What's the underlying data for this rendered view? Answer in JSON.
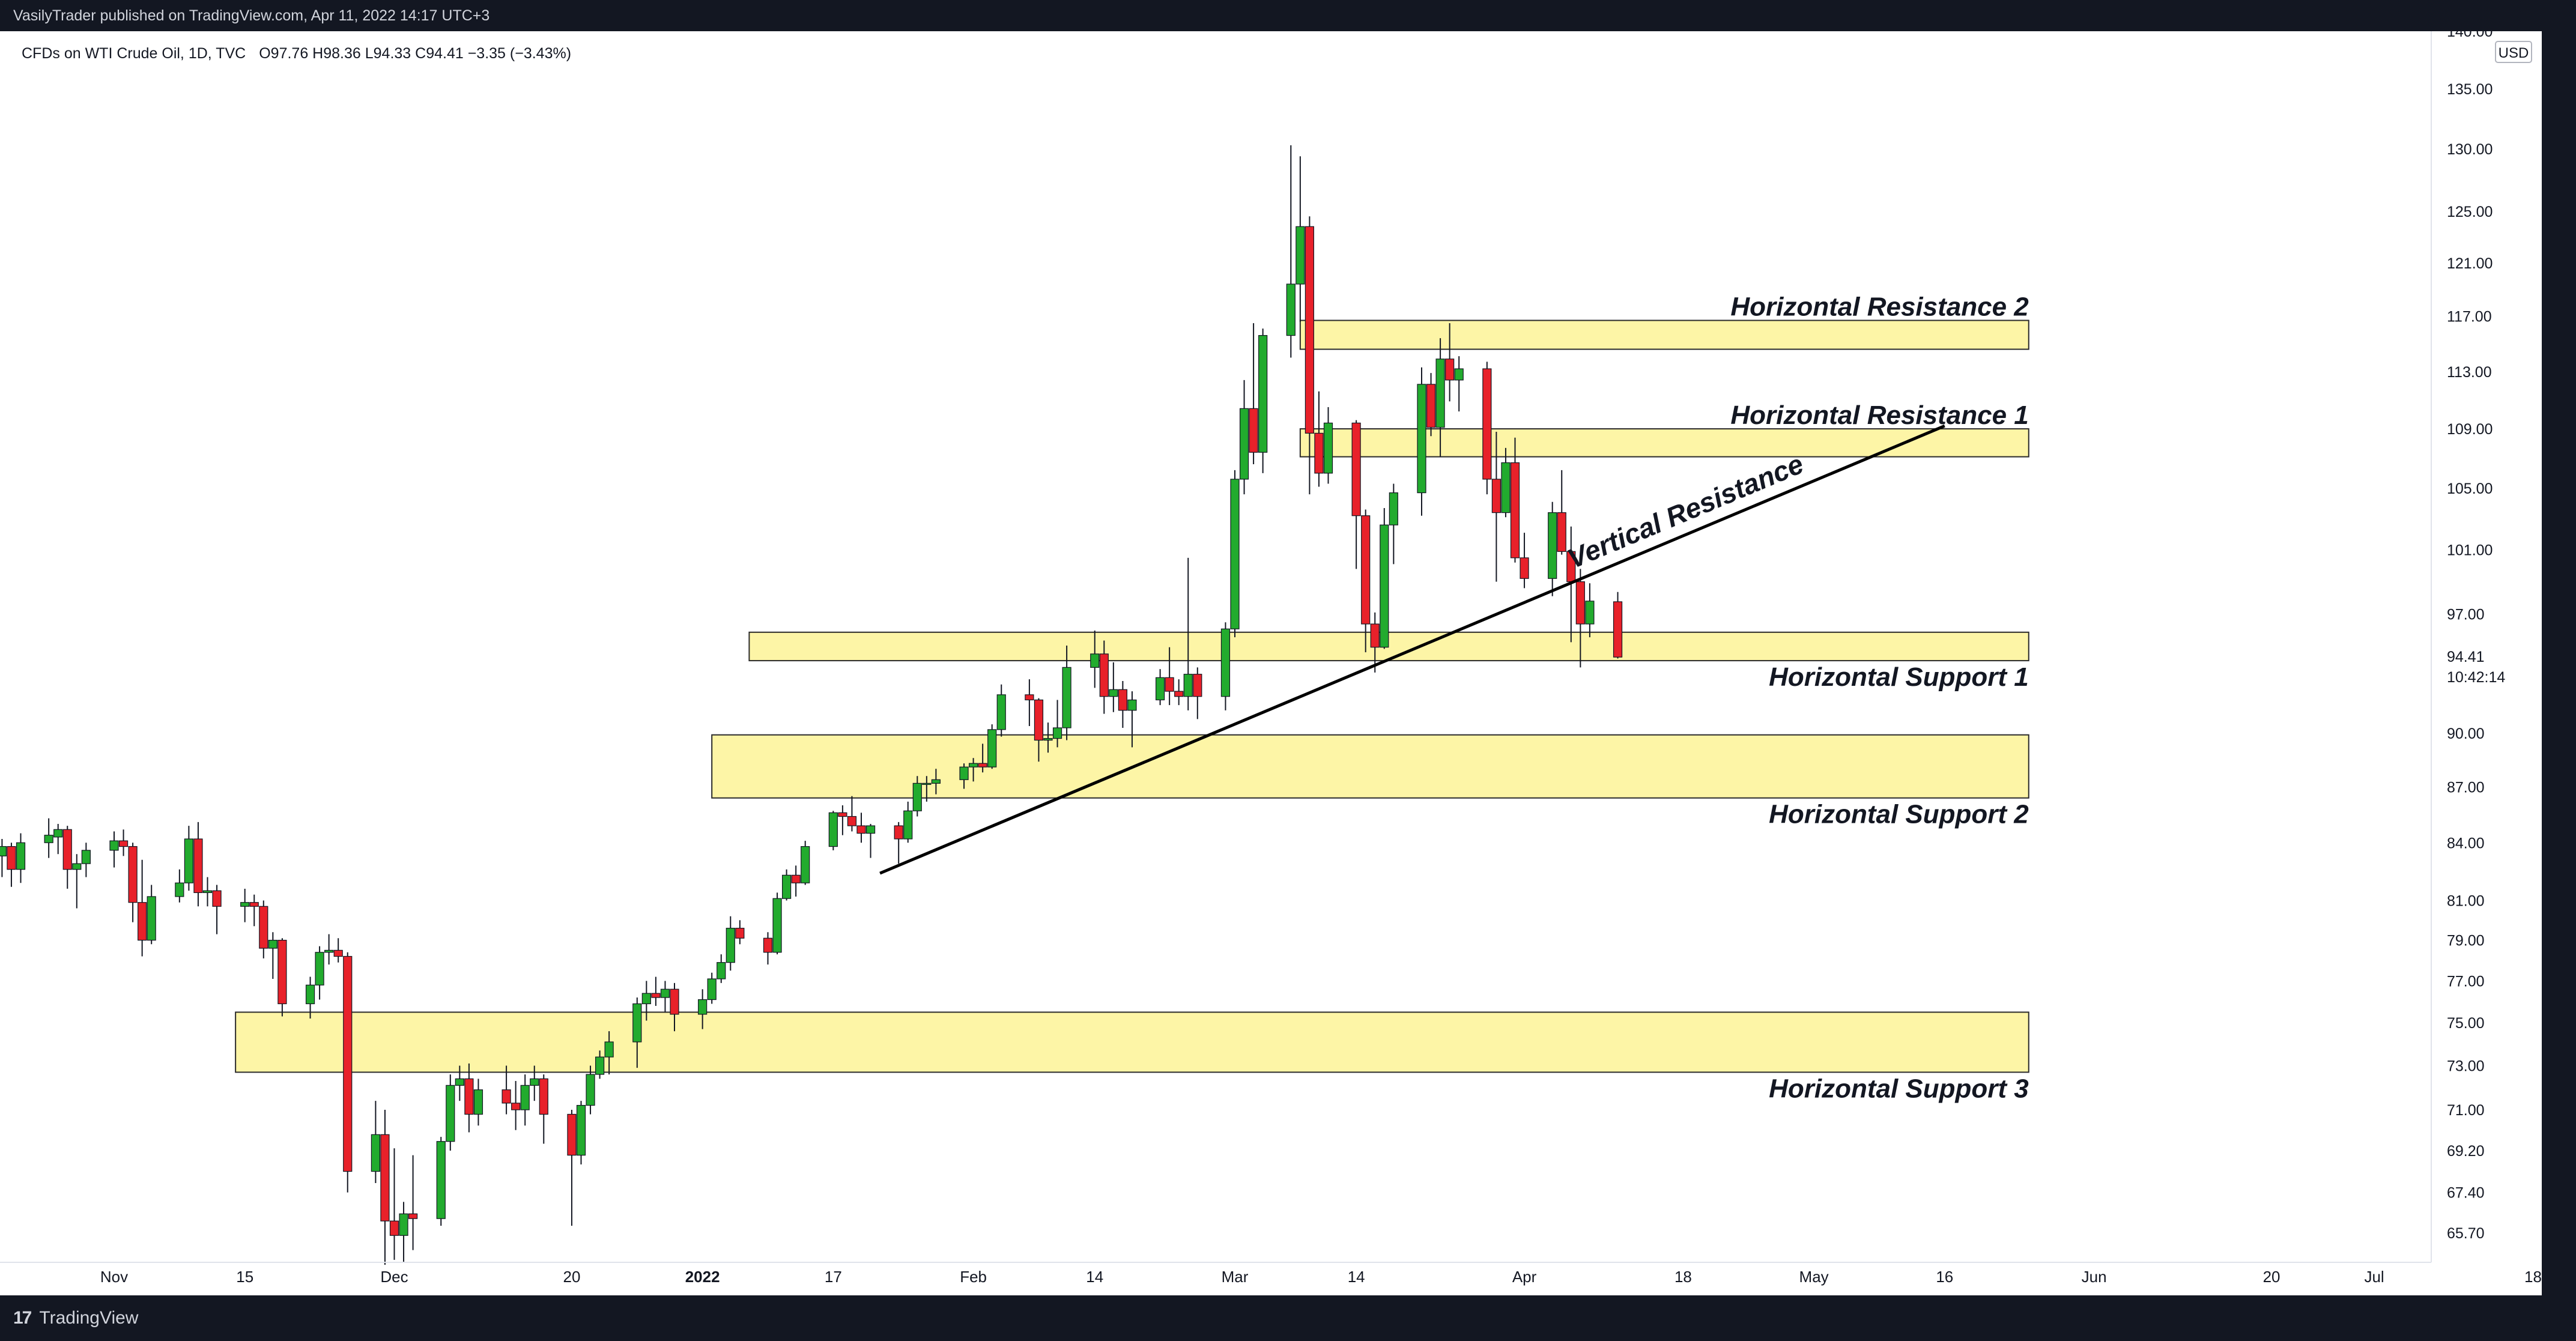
{
  "header": {
    "published": "VasilyTrader published on TradingView.com, Apr 11, 2022 14:17 UTC+3"
  },
  "legend": {
    "symbol": "CFDs on WTI Crude Oil, 1D, TVC",
    "ohlc": "O97.76  H98.36  L94.33  C94.41  −3.35 (−3.43%)"
  },
  "footer": {
    "brand": "TradingView",
    "logo": "17"
  },
  "colors": {
    "up": "#22ab2e",
    "down": "#e8212a",
    "zone_fill": "#fdf5a6",
    "zone_stroke": "#2a2a2a",
    "background": "#ffffff",
    "axis_text": "#131722"
  },
  "chart_data": {
    "type": "candlestick",
    "title": "CFDs on WTI Crude Oil, 1D, TVC",
    "currency": "USD",
    "y_scale": "log",
    "ylim": [
      64.5,
      140.0
    ],
    "last_price": "94.41",
    "countdown": "10:42:14",
    "y_ticks": [
      "140.00",
      "135.00",
      "130.00",
      "125.00",
      "121.00",
      "117.00",
      "113.00",
      "109.00",
      "105.00",
      "101.00",
      "97.00",
      "94.41",
      "90.00",
      "87.00",
      "84.00",
      "81.00",
      "79.00",
      "77.00",
      "75.00",
      "73.00",
      "71.00",
      "69.20",
      "67.40",
      "65.70"
    ],
    "x_ticks": [
      {
        "label": "Nov",
        "date": "2021-11-01",
        "bold": false
      },
      {
        "label": "15",
        "date": "2021-11-15",
        "bold": false
      },
      {
        "label": "Dec",
        "date": "2021-12-01",
        "bold": false
      },
      {
        "label": "20",
        "date": "2021-12-20",
        "bold": false
      },
      {
        "label": "2022",
        "date": "2022-01-03",
        "bold": true
      },
      {
        "label": "17",
        "date": "2022-01-17",
        "bold": false
      },
      {
        "label": "Feb",
        "date": "2022-02-01",
        "bold": false
      },
      {
        "label": "14",
        "date": "2022-02-14",
        "bold": false
      },
      {
        "label": "Mar",
        "date": "2022-03-01",
        "bold": false
      },
      {
        "label": "14",
        "date": "2022-03-14",
        "bold": false
      },
      {
        "label": "Apr",
        "date": "2022-04-01",
        "bold": false
      },
      {
        "label": "18",
        "date": "2022-04-18",
        "bold": false
      },
      {
        "label": "May",
        "date": "2022-05-02",
        "bold": false
      },
      {
        "label": "16",
        "date": "2022-05-16",
        "bold": false
      },
      {
        "label": "Jun",
        "date": "2022-06-01",
        "bold": false
      },
      {
        "label": "20",
        "date": "2022-06-20",
        "bold": false
      },
      {
        "label": "Jul",
        "date": "2022-07-01",
        "bold": false
      },
      {
        "label": "18",
        "date": "2022-07-18",
        "bold": false
      }
    ],
    "candles": [
      {
        "d": "2021-10-19",
        "o": 82.4,
        "h": 83.6,
        "l": 81.0,
        "c": 83.4
      },
      {
        "d": "2021-10-20",
        "o": 83.3,
        "h": 84.2,
        "l": 82.2,
        "c": 83.8
      },
      {
        "d": "2021-10-21",
        "o": 83.8,
        "h": 84.0,
        "l": 81.7,
        "c": 82.6
      },
      {
        "d": "2021-10-22",
        "o": 82.6,
        "h": 84.5,
        "l": 81.9,
        "c": 84.0
      },
      {
        "d": "2021-10-25",
        "o": 84.0,
        "h": 85.3,
        "l": 83.2,
        "c": 84.4
      },
      {
        "d": "2021-10-26",
        "o": 84.3,
        "h": 85.0,
        "l": 83.4,
        "c": 84.7
      },
      {
        "d": "2021-10-27",
        "o": 84.7,
        "h": 84.9,
        "l": 81.6,
        "c": 82.6
      },
      {
        "d": "2021-10-28",
        "o": 82.6,
        "h": 83.4,
        "l": 80.6,
        "c": 82.9
      },
      {
        "d": "2021-10-29",
        "o": 82.9,
        "h": 84.0,
        "l": 82.2,
        "c": 83.6
      },
      {
        "d": "2021-11-01",
        "o": 83.6,
        "h": 84.6,
        "l": 82.7,
        "c": 84.1
      },
      {
        "d": "2021-11-02",
        "o": 84.1,
        "h": 84.7,
        "l": 83.3,
        "c": 83.8
      },
      {
        "d": "2021-11-03",
        "o": 83.8,
        "h": 84.0,
        "l": 79.9,
        "c": 80.9
      },
      {
        "d": "2021-11-04",
        "o": 80.9,
        "h": 83.1,
        "l": 78.2,
        "c": 79.0
      },
      {
        "d": "2021-11-05",
        "o": 79.0,
        "h": 81.8,
        "l": 78.8,
        "c": 81.2
      },
      {
        "d": "2021-11-08",
        "o": 81.2,
        "h": 82.6,
        "l": 80.9,
        "c": 81.9
      },
      {
        "d": "2021-11-09",
        "o": 81.9,
        "h": 84.9,
        "l": 81.5,
        "c": 84.2
      },
      {
        "d": "2021-11-10",
        "o": 84.2,
        "h": 85.1,
        "l": 80.7,
        "c": 81.4
      },
      {
        "d": "2021-11-11",
        "o": 81.4,
        "h": 82.2,
        "l": 80.7,
        "c": 81.5
      },
      {
        "d": "2021-11-12",
        "o": 81.5,
        "h": 81.8,
        "l": 79.3,
        "c": 80.7
      },
      {
        "d": "2021-11-15",
        "o": 80.7,
        "h": 81.6,
        "l": 79.9,
        "c": 80.9
      },
      {
        "d": "2021-11-16",
        "o": 80.9,
        "h": 81.3,
        "l": 79.7,
        "c": 80.7
      },
      {
        "d": "2021-11-17",
        "o": 80.7,
        "h": 81.0,
        "l": 78.1,
        "c": 78.6
      },
      {
        "d": "2021-11-18",
        "o": 78.6,
        "h": 79.4,
        "l": 77.1,
        "c": 79.0
      },
      {
        "d": "2021-11-19",
        "o": 79.0,
        "h": 79.1,
        "l": 75.3,
        "c": 75.9
      },
      {
        "d": "2021-11-22",
        "o": 75.9,
        "h": 77.2,
        "l": 75.2,
        "c": 76.8
      },
      {
        "d": "2021-11-23",
        "o": 76.8,
        "h": 78.7,
        "l": 76.1,
        "c": 78.4
      },
      {
        "d": "2021-11-24",
        "o": 78.4,
        "h": 79.3,
        "l": 77.8,
        "c": 78.5
      },
      {
        "d": "2021-11-25",
        "o": 78.5,
        "h": 79.1,
        "l": 77.9,
        "c": 78.2
      },
      {
        "d": "2021-11-26",
        "o": 78.2,
        "h": 78.4,
        "l": 67.4,
        "c": 68.3
      },
      {
        "d": "2021-11-29",
        "o": 68.3,
        "h": 71.4,
        "l": 67.8,
        "c": 69.9
      },
      {
        "d": "2021-11-30",
        "o": 69.9,
        "h": 71.0,
        "l": 64.4,
        "c": 66.2
      },
      {
        "d": "2021-12-01",
        "o": 66.2,
        "h": 69.3,
        "l": 64.6,
        "c": 65.6
      },
      {
        "d": "2021-12-02",
        "o": 65.6,
        "h": 67.0,
        "l": 64.5,
        "c": 66.5
      },
      {
        "d": "2021-12-03",
        "o": 66.5,
        "h": 69.0,
        "l": 65.0,
        "c": 66.3
      },
      {
        "d": "2021-12-06",
        "o": 66.3,
        "h": 69.8,
        "l": 66.0,
        "c": 69.6
      },
      {
        "d": "2021-12-07",
        "o": 69.6,
        "h": 72.6,
        "l": 69.2,
        "c": 72.1
      },
      {
        "d": "2021-12-08",
        "o": 72.1,
        "h": 73.0,
        "l": 71.4,
        "c": 72.4
      },
      {
        "d": "2021-12-09",
        "o": 72.4,
        "h": 73.1,
        "l": 70.0,
        "c": 70.8
      },
      {
        "d": "2021-12-10",
        "o": 70.8,
        "h": 72.4,
        "l": 70.3,
        "c": 71.9
      },
      {
        "d": "2021-12-13",
        "o": 71.9,
        "h": 73.0,
        "l": 70.8,
        "c": 71.3
      },
      {
        "d": "2021-12-14",
        "o": 71.3,
        "h": 72.3,
        "l": 70.1,
        "c": 71.0
      },
      {
        "d": "2021-12-15",
        "o": 71.0,
        "h": 72.6,
        "l": 70.3,
        "c": 72.1
      },
      {
        "d": "2021-12-16",
        "o": 72.1,
        "h": 73.0,
        "l": 71.4,
        "c": 72.4
      },
      {
        "d": "2021-12-17",
        "o": 72.4,
        "h": 72.6,
        "l": 69.5,
        "c": 70.8
      },
      {
        "d": "2021-12-20",
        "o": 70.8,
        "h": 71.0,
        "l": 66.0,
        "c": 69.0
      },
      {
        "d": "2021-12-21",
        "o": 69.0,
        "h": 71.4,
        "l": 68.6,
        "c": 71.2
      },
      {
        "d": "2021-12-22",
        "o": 71.2,
        "h": 73.0,
        "l": 70.8,
        "c": 72.6
      },
      {
        "d": "2021-12-23",
        "o": 72.6,
        "h": 73.7,
        "l": 72.4,
        "c": 73.4
      },
      {
        "d": "2021-12-24",
        "o": 73.4,
        "h": 74.6,
        "l": 72.6,
        "c": 74.1
      },
      {
        "d": "2021-12-27",
        "o": 74.1,
        "h": 76.2,
        "l": 72.9,
        "c": 75.9
      },
      {
        "d": "2021-12-28",
        "o": 75.9,
        "h": 77.0,
        "l": 75.1,
        "c": 76.4
      },
      {
        "d": "2021-12-29",
        "o": 76.4,
        "h": 77.2,
        "l": 75.8,
        "c": 76.2
      },
      {
        "d": "2021-12-30",
        "o": 76.2,
        "h": 77.0,
        "l": 75.5,
        "c": 76.6
      },
      {
        "d": "2021-12-31",
        "o": 76.6,
        "h": 76.9,
        "l": 74.6,
        "c": 75.4
      },
      {
        "d": "2022-01-03",
        "o": 75.4,
        "h": 76.6,
        "l": 74.7,
        "c": 76.1
      },
      {
        "d": "2022-01-04",
        "o": 76.1,
        "h": 77.4,
        "l": 75.9,
        "c": 77.1
      },
      {
        "d": "2022-01-05",
        "o": 77.1,
        "h": 78.3,
        "l": 76.9,
        "c": 77.9
      },
      {
        "d": "2022-01-06",
        "o": 77.9,
        "h": 80.2,
        "l": 77.5,
        "c": 79.6
      },
      {
        "d": "2022-01-07",
        "o": 79.6,
        "h": 80.0,
        "l": 78.8,
        "c": 79.1
      },
      {
        "d": "2022-01-10",
        "o": 79.1,
        "h": 79.4,
        "l": 77.8,
        "c": 78.4
      },
      {
        "d": "2022-01-11",
        "o": 78.4,
        "h": 81.4,
        "l": 78.3,
        "c": 81.1
      },
      {
        "d": "2022-01-12",
        "o": 81.1,
        "h": 82.6,
        "l": 81.0,
        "c": 82.3
      },
      {
        "d": "2022-01-13",
        "o": 82.3,
        "h": 82.8,
        "l": 81.2,
        "c": 81.9
      },
      {
        "d": "2022-01-14",
        "o": 81.9,
        "h": 84.1,
        "l": 81.8,
        "c": 83.8
      },
      {
        "d": "2022-01-17",
        "o": 83.8,
        "h": 85.7,
        "l": 83.6,
        "c": 85.6
      },
      {
        "d": "2022-01-18",
        "o": 85.6,
        "h": 86.0,
        "l": 84.4,
        "c": 85.4
      },
      {
        "d": "2022-01-19",
        "o": 85.4,
        "h": 86.5,
        "l": 84.6,
        "c": 84.9
      },
      {
        "d": "2022-01-20",
        "o": 84.9,
        "h": 85.6,
        "l": 84.0,
        "c": 84.5
      },
      {
        "d": "2022-01-21",
        "o": 84.5,
        "h": 85.0,
        "l": 83.2,
        "c": 84.9
      },
      {
        "d": "2022-01-24",
        "o": 84.9,
        "h": 85.1,
        "l": 82.9,
        "c": 84.2
      },
      {
        "d": "2022-01-25",
        "o": 84.2,
        "h": 86.2,
        "l": 84.0,
        "c": 85.7
      },
      {
        "d": "2022-01-26",
        "o": 85.7,
        "h": 87.6,
        "l": 85.4,
        "c": 87.2
      },
      {
        "d": "2022-01-27",
        "o": 87.2,
        "h": 87.6,
        "l": 86.2,
        "c": 87.2
      },
      {
        "d": "2022-01-28",
        "o": 87.2,
        "h": 88.0,
        "l": 86.6,
        "c": 87.4
      },
      {
        "d": "2022-01-31",
        "o": 87.4,
        "h": 88.3,
        "l": 86.9,
        "c": 88.1
      },
      {
        "d": "2022-02-01",
        "o": 88.1,
        "h": 88.6,
        "l": 87.3,
        "c": 88.3
      },
      {
        "d": "2022-02-02",
        "o": 88.3,
        "h": 89.4,
        "l": 87.8,
        "c": 88.1
      },
      {
        "d": "2022-02-03",
        "o": 88.1,
        "h": 90.5,
        "l": 88.0,
        "c": 90.2
      },
      {
        "d": "2022-02-04",
        "o": 90.2,
        "h": 92.8,
        "l": 89.8,
        "c": 92.2
      },
      {
        "d": "2022-02-07",
        "o": 92.2,
        "h": 93.1,
        "l": 90.4,
        "c": 91.9
      },
      {
        "d": "2022-02-08",
        "o": 91.9,
        "h": 92.0,
        "l": 88.4,
        "c": 89.6
      },
      {
        "d": "2022-02-09",
        "o": 89.6,
        "h": 90.6,
        "l": 88.9,
        "c": 89.7
      },
      {
        "d": "2022-02-10",
        "o": 89.7,
        "h": 91.9,
        "l": 89.2,
        "c": 90.3
      },
      {
        "d": "2022-02-11",
        "o": 90.3,
        "h": 95.1,
        "l": 89.6,
        "c": 93.8
      },
      {
        "d": "2022-02-14",
        "o": 93.8,
        "h": 96.0,
        "l": 92.6,
        "c": 94.6
      },
      {
        "d": "2022-02-15",
        "o": 94.6,
        "h": 95.4,
        "l": 91.1,
        "c": 92.1
      },
      {
        "d": "2022-02-16",
        "o": 92.1,
        "h": 94.1,
        "l": 91.2,
        "c": 92.5
      },
      {
        "d": "2022-02-17",
        "o": 92.5,
        "h": 93.0,
        "l": 90.3,
        "c": 91.3
      },
      {
        "d": "2022-02-18",
        "o": 91.3,
        "h": 92.4,
        "l": 89.2,
        "c": 91.9
      },
      {
        "d": "2022-02-21",
        "o": 91.9,
        "h": 93.7,
        "l": 91.6,
        "c": 93.2
      },
      {
        "d": "2022-02-22",
        "o": 93.2,
        "h": 95.0,
        "l": 91.6,
        "c": 92.4
      },
      {
        "d": "2022-02-23",
        "o": 92.4,
        "h": 93.1,
        "l": 91.6,
        "c": 92.1
      },
      {
        "d": "2022-02-24",
        "o": 92.1,
        "h": 100.5,
        "l": 91.3,
        "c": 93.4
      },
      {
        "d": "2022-02-25",
        "o": 93.4,
        "h": 93.8,
        "l": 90.8,
        "c": 92.1
      },
      {
        "d": "2022-02-28",
        "o": 92.1,
        "h": 96.5,
        "l": 91.3,
        "c": 96.1
      },
      {
        "d": "2022-03-01",
        "o": 96.1,
        "h": 106.2,
        "l": 95.6,
        "c": 105.6
      },
      {
        "d": "2022-03-02",
        "o": 105.6,
        "h": 112.4,
        "l": 104.6,
        "c": 110.4
      },
      {
        "d": "2022-03-03",
        "o": 110.4,
        "h": 116.5,
        "l": 106.6,
        "c": 107.4
      },
      {
        "d": "2022-03-04",
        "o": 107.4,
        "h": 116.1,
        "l": 106.0,
        "c": 115.6
      },
      {
        "d": "2022-03-07",
        "o": 115.6,
        "h": 130.3,
        "l": 114.0,
        "c": 119.4
      },
      {
        "d": "2022-03-08",
        "o": 119.4,
        "h": 129.4,
        "l": 116.6,
        "c": 123.8
      },
      {
        "d": "2022-03-09",
        "o": 123.8,
        "h": 124.6,
        "l": 104.6,
        "c": 108.7
      },
      {
        "d": "2022-03-10",
        "o": 108.7,
        "h": 111.6,
        "l": 105.1,
        "c": 106.0
      },
      {
        "d": "2022-03-11",
        "o": 106.0,
        "h": 110.5,
        "l": 105.3,
        "c": 109.4
      },
      {
        "d": "2022-03-14",
        "o": 109.4,
        "h": 109.6,
        "l": 99.8,
        "c": 103.2
      },
      {
        "d": "2022-03-15",
        "o": 103.2,
        "h": 103.6,
        "l": 94.7,
        "c": 96.4
      },
      {
        "d": "2022-03-16",
        "o": 96.4,
        "h": 97.1,
        "l": 93.5,
        "c": 95.0
      },
      {
        "d": "2022-03-17",
        "o": 95.0,
        "h": 103.7,
        "l": 94.9,
        "c": 102.6
      },
      {
        "d": "2022-03-18",
        "o": 102.6,
        "h": 105.3,
        "l": 100.1,
        "c": 104.7
      },
      {
        "d": "2022-03-21",
        "o": 104.7,
        "h": 113.3,
        "l": 103.2,
        "c": 112.1
      },
      {
        "d": "2022-03-22",
        "o": 112.1,
        "h": 112.9,
        "l": 108.5,
        "c": 109.1
      },
      {
        "d": "2022-03-23",
        "o": 109.1,
        "h": 115.4,
        "l": 107.1,
        "c": 113.9
      },
      {
        "d": "2022-03-24",
        "o": 113.9,
        "h": 116.5,
        "l": 110.9,
        "c": 112.4
      },
      {
        "d": "2022-03-25",
        "o": 112.4,
        "h": 114.1,
        "l": 110.2,
        "c": 113.2
      },
      {
        "d": "2022-03-28",
        "o": 113.2,
        "h": 113.7,
        "l": 104.6,
        "c": 105.6
      },
      {
        "d": "2022-03-29",
        "o": 105.6,
        "h": 108.8,
        "l": 99.0,
        "c": 103.4
      },
      {
        "d": "2022-03-30",
        "o": 103.4,
        "h": 107.7,
        "l": 103.1,
        "c": 106.7
      },
      {
        "d": "2022-03-31",
        "o": 106.7,
        "h": 108.4,
        "l": 100.2,
        "c": 100.5
      },
      {
        "d": "2022-04-01",
        "o": 100.5,
        "h": 102.1,
        "l": 98.6,
        "c": 99.2
      },
      {
        "d": "2022-04-04",
        "o": 99.2,
        "h": 104.1,
        "l": 98.1,
        "c": 103.4
      },
      {
        "d": "2022-04-05",
        "o": 103.4,
        "h": 106.2,
        "l": 100.7,
        "c": 100.9
      },
      {
        "d": "2022-04-06",
        "o": 100.9,
        "h": 102.5,
        "l": 95.3,
        "c": 99.0
      },
      {
        "d": "2022-04-07",
        "o": 99.0,
        "h": 99.8,
        "l": 93.8,
        "c": 96.4
      },
      {
        "d": "2022-04-08",
        "o": 96.4,
        "h": 98.9,
        "l": 95.6,
        "c": 97.8
      },
      {
        "d": "2022-04-11",
        "o": 97.76,
        "h": 98.36,
        "l": 94.33,
        "c": 94.41
      }
    ],
    "zones": [
      {
        "label": "Horizontal Resistance 2",
        "from": "2022-03-08",
        "to": "2022-05-25",
        "low": 114.6,
        "high": 116.7
      },
      {
        "label": "Horizontal Resistance 1",
        "from": "2022-03-08",
        "to": "2022-05-25",
        "low": 107.1,
        "high": 109.0
      },
      {
        "label": "Horizontal Support 1",
        "from": "2022-01-08",
        "to": "2022-05-25",
        "low": 94.2,
        "high": 95.9
      },
      {
        "label": "Horizontal Support 2",
        "from": "2022-01-04",
        "to": "2022-05-25",
        "low": 86.4,
        "high": 89.9
      },
      {
        "label": "Horizontal Support 3",
        "from": "2021-11-14",
        "to": "2022-05-25",
        "low": 72.7,
        "high": 75.5
      }
    ],
    "trendline": {
      "label": "Vertical Resistance",
      "from": {
        "d": "2022-01-22",
        "p": 82.4
      },
      "to": {
        "d": "2022-05-16",
        "p": 109.2
      }
    }
  }
}
